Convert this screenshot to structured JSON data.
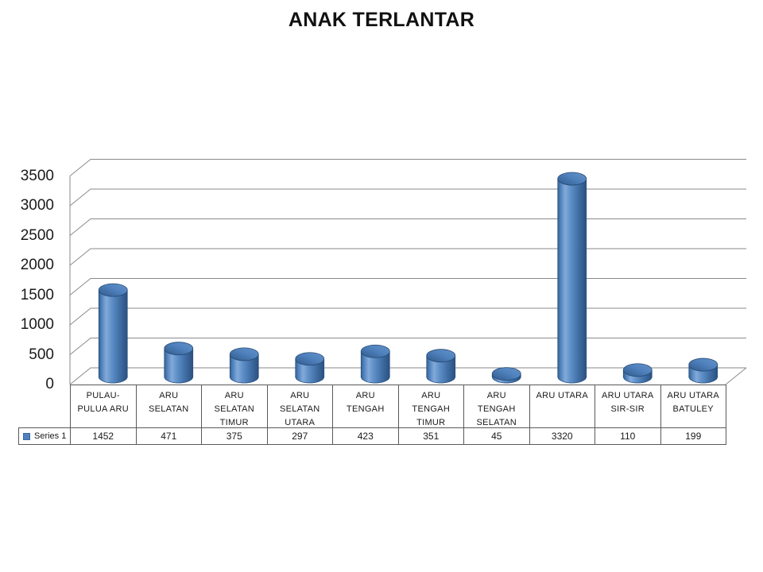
{
  "slide": {
    "title": "ANAK TERLANTAR"
  },
  "chart_data": {
    "type": "bar",
    "style": "3d-cylinder",
    "title": "ANAK TERLANTAR",
    "categories": [
      "PULAU-\nPULUA ARU",
      "ARU\nSELATAN",
      "ARU\nSELATAN\nTIMUR",
      "ARU\nSELATAN\nUTARA",
      "ARU\nTENGAH",
      "ARU\nTENGAH\nTIMUR",
      "ARU\nTENGAH\nSELATAN",
      "ARU UTARA",
      "ARU UTARA\nSIR-SIR",
      "ARU UTARA\nBATULEY"
    ],
    "series": [
      {
        "name": "Series 1",
        "values": [
          1452,
          471,
          375,
          297,
          423,
          351,
          45,
          3320,
          110,
          199
        ]
      }
    ],
    "xlabel": "",
    "ylabel": "",
    "ylim": [
      0,
      3500
    ],
    "yticks": [
      0,
      500,
      1000,
      1500,
      2000,
      2500,
      3000,
      3500
    ],
    "grid": true,
    "legend_position": "bottom-left-data-table",
    "data_table_shown": true,
    "colors": {
      "bar_fill": "#4f81bd",
      "bar_highlight": "#82aad9",
      "bar_edge": "#2b5080",
      "gridline": "#8a8a8a",
      "table_border": "#595959",
      "text": "#1a1a1a",
      "background": "#ffffff"
    }
  }
}
